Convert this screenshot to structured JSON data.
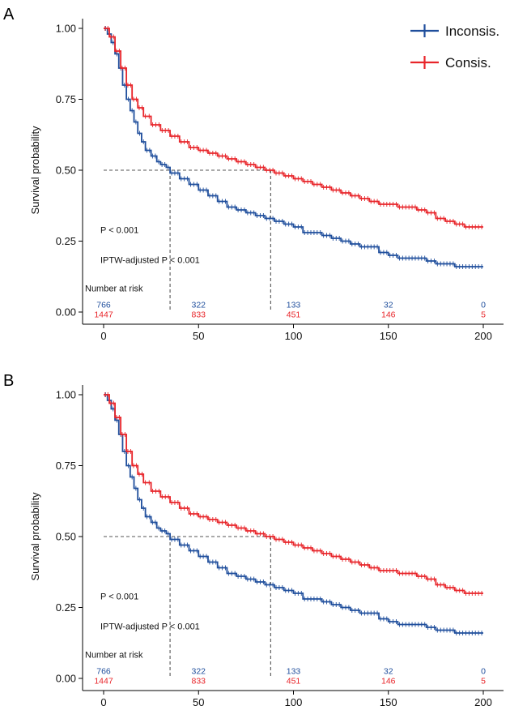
{
  "colors": {
    "inconsis": "#1f4e9c",
    "consis": "#e8252a",
    "axis": "#000000",
    "ref": "#555555"
  },
  "legend": {
    "inconsis": "Inconsis.",
    "consis": "Consis."
  },
  "chart_data": [
    {
      "panel": "A",
      "type": "line",
      "ylabel": "Survival probability",
      "xlim": [
        0,
        200
      ],
      "ylim": [
        0,
        1
      ],
      "xticks": [
        "0",
        "50",
        "100",
        "150",
        "200"
      ],
      "yticks": [
        "0.00",
        "0.25",
        "0.50",
        "0.75",
        "1.00"
      ],
      "annotations": {
        "p_value": "P < 0.001",
        "iptw": "IPTW-adjusted P < 0.001",
        "risk_title": "Number at risk"
      },
      "median_lines": {
        "y": 0.5,
        "x": [
          35,
          88
        ]
      },
      "series": [
        {
          "name": "Inconsis.",
          "x": [
            0,
            2,
            4,
            6,
            8,
            10,
            12,
            14,
            16,
            18,
            20,
            22,
            25,
            28,
            30,
            33,
            35,
            40,
            45,
            50,
            55,
            60,
            65,
            70,
            75,
            80,
            85,
            90,
            95,
            100,
            105,
            110,
            115,
            120,
            125,
            130,
            135,
            140,
            145,
            150,
            155,
            160,
            165,
            170,
            175,
            180,
            185,
            190,
            195,
            200
          ],
          "values": [
            1.0,
            0.98,
            0.95,
            0.91,
            0.86,
            0.8,
            0.75,
            0.71,
            0.67,
            0.63,
            0.6,
            0.57,
            0.55,
            0.53,
            0.52,
            0.51,
            0.49,
            0.47,
            0.45,
            0.43,
            0.41,
            0.39,
            0.37,
            0.36,
            0.35,
            0.34,
            0.33,
            0.32,
            0.31,
            0.3,
            0.28,
            0.28,
            0.27,
            0.26,
            0.25,
            0.24,
            0.23,
            0.23,
            0.21,
            0.2,
            0.19,
            0.19,
            0.19,
            0.18,
            0.17,
            0.17,
            0.16,
            0.16,
            0.16,
            0.16
          ]
        },
        {
          "name": "Consis.",
          "x": [
            0,
            3,
            6,
            9,
            12,
            15,
            18,
            21,
            25,
            30,
            35,
            40,
            45,
            50,
            55,
            60,
            65,
            70,
            75,
            80,
            85,
            90,
            95,
            100,
            105,
            110,
            115,
            120,
            125,
            130,
            135,
            140,
            145,
            150,
            155,
            160,
            165,
            170,
            175,
            180,
            185,
            190,
            195,
            200
          ],
          "values": [
            1.0,
            0.97,
            0.92,
            0.86,
            0.8,
            0.75,
            0.72,
            0.69,
            0.66,
            0.64,
            0.62,
            0.6,
            0.58,
            0.57,
            0.56,
            0.55,
            0.54,
            0.53,
            0.52,
            0.51,
            0.5,
            0.49,
            0.48,
            0.47,
            0.46,
            0.45,
            0.44,
            0.43,
            0.42,
            0.41,
            0.4,
            0.39,
            0.38,
            0.38,
            0.37,
            0.37,
            0.36,
            0.35,
            0.33,
            0.32,
            0.31,
            0.3,
            0.3,
            0.3
          ]
        }
      ],
      "risk_table": {
        "times": [
          0,
          50,
          100,
          150,
          200
        ],
        "inconsis": [
          "766",
          "322",
          "133",
          "32",
          "0"
        ],
        "consis": [
          "1447",
          "833",
          "451",
          "146",
          "5"
        ]
      }
    },
    {
      "panel": "B",
      "type": "line",
      "ylabel": "Survival probability",
      "xlim": [
        0,
        200
      ],
      "ylim": [
        0,
        1
      ],
      "xticks": [
        "0",
        "50",
        "100",
        "150",
        "200"
      ],
      "yticks": [
        "0.00",
        "0.25",
        "0.50",
        "0.75",
        "1.00"
      ],
      "annotations": {
        "p_value": "P < 0.001",
        "iptw": "IPTW-adjusted P < 0.001",
        "risk_title": "Number at risk"
      },
      "median_lines": {
        "y": 0.5,
        "x": [
          35,
          88
        ]
      },
      "series": [
        {
          "name": "Inconsis.",
          "x": [
            0,
            2,
            4,
            6,
            8,
            10,
            12,
            14,
            16,
            18,
            20,
            22,
            25,
            28,
            30,
            33,
            35,
            40,
            45,
            50,
            55,
            60,
            65,
            70,
            75,
            80,
            85,
            90,
            95,
            100,
            105,
            110,
            115,
            120,
            125,
            130,
            135,
            140,
            145,
            150,
            155,
            160,
            165,
            170,
            175,
            180,
            185,
            190,
            195,
            200
          ],
          "values": [
            1.0,
            0.98,
            0.95,
            0.91,
            0.86,
            0.8,
            0.75,
            0.71,
            0.67,
            0.63,
            0.6,
            0.57,
            0.55,
            0.53,
            0.52,
            0.51,
            0.49,
            0.47,
            0.45,
            0.43,
            0.41,
            0.39,
            0.37,
            0.36,
            0.35,
            0.34,
            0.33,
            0.32,
            0.31,
            0.3,
            0.28,
            0.28,
            0.27,
            0.26,
            0.25,
            0.24,
            0.23,
            0.23,
            0.21,
            0.2,
            0.19,
            0.19,
            0.19,
            0.18,
            0.17,
            0.17,
            0.16,
            0.16,
            0.16,
            0.16
          ]
        },
        {
          "name": "Consis.",
          "x": [
            0,
            3,
            6,
            9,
            12,
            15,
            18,
            21,
            25,
            30,
            35,
            40,
            45,
            50,
            55,
            60,
            65,
            70,
            75,
            80,
            85,
            90,
            95,
            100,
            105,
            110,
            115,
            120,
            125,
            130,
            135,
            140,
            145,
            150,
            155,
            160,
            165,
            170,
            175,
            180,
            185,
            190,
            195,
            200
          ],
          "values": [
            1.0,
            0.97,
            0.92,
            0.86,
            0.8,
            0.75,
            0.72,
            0.69,
            0.66,
            0.64,
            0.62,
            0.6,
            0.58,
            0.57,
            0.56,
            0.55,
            0.54,
            0.53,
            0.52,
            0.51,
            0.5,
            0.49,
            0.48,
            0.47,
            0.46,
            0.45,
            0.44,
            0.43,
            0.42,
            0.41,
            0.4,
            0.39,
            0.38,
            0.38,
            0.37,
            0.37,
            0.36,
            0.35,
            0.33,
            0.32,
            0.31,
            0.3,
            0.3,
            0.3
          ]
        }
      ],
      "risk_table": {
        "times": [
          0,
          50,
          100,
          150,
          200
        ],
        "inconsis": [
          "766",
          "322",
          "133",
          "32",
          "0"
        ],
        "consis": [
          "1447",
          "833",
          "451",
          "146",
          "5"
        ]
      }
    }
  ]
}
